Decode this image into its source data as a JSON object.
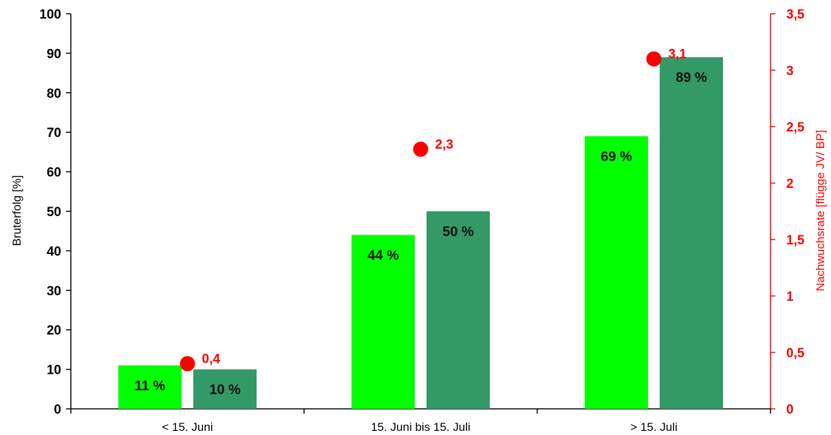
{
  "chart_data": {
    "type": "bar",
    "title": "",
    "categories": [
      "< 15. Juni",
      "15. Juni bis 15. Juli",
      "> 15. Juli"
    ],
    "series": [
      {
        "values": [
          11,
          44,
          69
        ],
        "labels": [
          "11 %",
          "44 %",
          "69 %"
        ],
        "color": "#00ff00"
      },
      {
        "values": [
          10,
          50,
          89
        ],
        "labels": [
          "10 %",
          "50 %",
          "89 %"
        ],
        "color": "#339966"
      }
    ],
    "secondary_series": {
      "type": "scatter",
      "values": [
        0.4,
        2.3,
        3.1
      ],
      "labels": [
        "0,4",
        "2,3",
        "3,1"
      ],
      "color": "#ff0000",
      "axis": "right"
    },
    "ylabel": "Bruterfolg [%]",
    "ylim": [
      0,
      100
    ],
    "yticks": [
      "0",
      "10",
      "20",
      "30",
      "40",
      "50",
      "60",
      "70",
      "80",
      "90",
      "100"
    ],
    "y2label": "Nachwuchsrate [flügge JV/ BP]",
    "y2lim": [
      0,
      3.5
    ],
    "y2ticks": [
      "0",
      "0,5",
      "1",
      "1,5",
      "2",
      "2,5",
      "3",
      "3,5"
    ],
    "y2_color": "#ff0000",
    "grid": false,
    "legend": "none"
  }
}
